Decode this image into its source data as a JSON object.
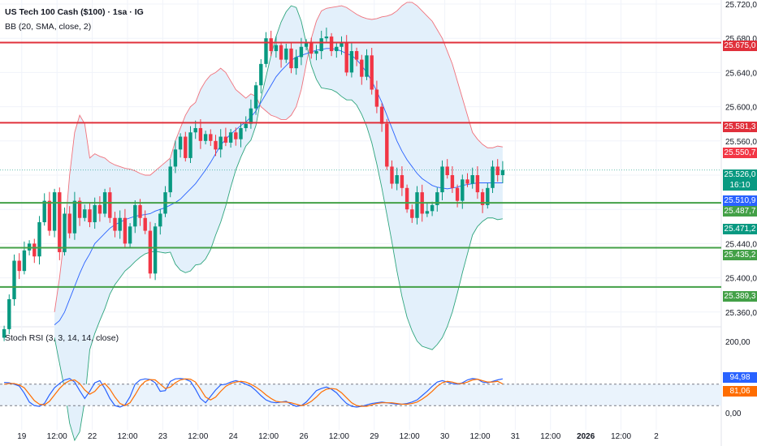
{
  "legend": {
    "title": "US Tech 100 Cash ($100) · 1sa · IG",
    "indicator": "BB (20, SMA, close, 2)",
    "oscillator": "Stoch RSI (3, 3, 14, 14, close)"
  },
  "colors": {
    "up": "#089981",
    "down": "#f23645",
    "resistance": "#e0303b",
    "support": "#43a047",
    "bb_upper": "#f0727c",
    "bb_lower": "#2fa57e",
    "bb_basis": "#2962ff",
    "bb_fill": "#e3f0fb",
    "stoch_k": "#2962ff",
    "stoch_d": "#ff6d00",
    "grid": "#f0f3fa"
  },
  "chart_data": [
    {
      "type": "candlestick",
      "title": "US Tech 100 Cash ($100) · 1sa · IG",
      "yticks": [
        "25.720,0",
        "25.680,0",
        "25.640,0",
        "25.600,0",
        "25.560,0",
        "25.520,0",
        "25.480,0",
        "25.440,0",
        "25.400,0",
        "25.360,0"
      ],
      "ytick_values": [
        25720,
        25680,
        25640,
        25600,
        25560,
        25520,
        25480,
        25440,
        25400,
        25360
      ],
      "ylim": [
        25360,
        25720
      ],
      "xticks": [
        "19",
        "12:00",
        "22",
        "12:00",
        "23",
        "12:00",
        "24",
        "12:00",
        "26",
        "12:00",
        "29",
        "12:00",
        "30",
        "12:00",
        "31",
        "12:00",
        "2026",
        "12:00",
        "2"
      ],
      "xtick_bars": [
        4,
        11,
        18,
        25,
        32,
        39,
        46,
        53,
        60,
        67,
        74,
        81,
        88,
        95,
        102,
        109,
        116,
        123,
        130
      ],
      "horizontal_levels": [
        {
          "label": "25.675,0",
          "value": 25675.0,
          "color": "#e0303b",
          "line": true
        },
        {
          "label": "25.581,3",
          "value": 25581.3,
          "color": "#e0303b",
          "line": true
        },
        {
          "label": "25.550,7",
          "value": 25550.7,
          "color": "#f23645",
          "line": false
        },
        {
          "label": "25.526,0",
          "value": 25526.0,
          "color": "#089981",
          "line": false,
          "sub": "16:10"
        },
        {
          "label": "25.510,9",
          "value": 25510.9,
          "color": "#2962ff",
          "line": false
        },
        {
          "label": "25.487,7",
          "value": 25487.7,
          "color": "#43a047",
          "line": true
        },
        {
          "label": "25.471,2",
          "value": 25471.2,
          "color": "#089981",
          "line": false
        },
        {
          "label": "25.435,2",
          "value": 25435.2,
          "color": "#43a047",
          "line": true
        },
        {
          "label": "25.389,3",
          "value": 25389.3,
          "color": "#43a047",
          "line": true
        }
      ],
      "closes": [
        25340,
        25375,
        25420,
        25408,
        25432,
        25440,
        25425,
        25465,
        25490,
        25455,
        25500,
        25430,
        25475,
        25452,
        25490,
        25470,
        25480,
        25465,
        25485,
        25475,
        25500,
        25470,
        25455,
        25470,
        25440,
        25460,
        25485,
        25470,
        25455,
        25405,
        25460,
        25475,
        25500,
        25530,
        25550,
        25565,
        25540,
        25570,
        25575,
        25560,
        25568,
        25560,
        25550,
        25565,
        25558,
        25570,
        25562,
        25575,
        25580,
        25598,
        25625,
        25650,
        25680,
        25665,
        25672,
        25655,
        25668,
        25645,
        25658,
        25670,
        25675,
        25662,
        25665,
        25680,
        25682,
        25665,
        25670,
        25675,
        25640,
        25665,
        25655,
        25635,
        25660,
        25620,
        25600,
        25580,
        25530,
        25510,
        25520,
        25505,
        25480,
        25470,
        25500,
        25475,
        25478,
        25485,
        25500,
        25530,
        25520,
        25505,
        25490,
        25515,
        25510,
        25520,
        25500,
        25485,
        25505,
        25530,
        25520,
        25526
      ],
      "bb_upper": [
        25360,
        25400,
        25450,
        25520,
        25570,
        25590,
        25580,
        25540,
        25545,
        25542,
        25540,
        25535,
        25532,
        25530,
        25528,
        25527,
        25525,
        25522,
        25520,
        25520,
        25525,
        25530,
        25535,
        25540,
        25560,
        25575,
        25590,
        25600,
        25605,
        25620,
        25630,
        25637,
        25640,
        25645,
        25640,
        25630,
        25620,
        25615,
        25610,
        25615,
        25612,
        25600,
        25595,
        25590,
        25588,
        25585,
        25585,
        25590,
        25600,
        25620,
        25650,
        25680,
        25700,
        25712,
        25715,
        25716,
        25717,
        25718,
        25716,
        25712,
        25708,
        25705,
        25703,
        25702,
        25703,
        25705,
        25706,
        25708,
        25712,
        25718,
        25722,
        25722,
        25718,
        25712,
        25706,
        25700,
        25690,
        25680,
        25665,
        25650,
        25630,
        25610,
        25590,
        25570,
        25562,
        25556,
        25552,
        25552,
        25554,
        25553
      ],
      "bb_basis": [
        25345,
        25350,
        25360,
        25375,
        25390,
        25405,
        25418,
        25428,
        25440,
        25446,
        25452,
        25458,
        25462,
        25465,
        25468,
        25470,
        25472,
        25473,
        25474,
        25475,
        25478,
        25480,
        25482,
        25485,
        25488,
        25492,
        25498,
        25504,
        25510,
        25518,
        25526,
        25535,
        25545,
        25555,
        25562,
        25568,
        25573,
        25578,
        25582,
        25588,
        25595,
        25605,
        25615,
        25625,
        25635,
        25642,
        25648,
        25654,
        25658,
        25660,
        25662,
        25664,
        25666,
        25667,
        25668,
        25668,
        25667,
        25665,
        25662,
        25660,
        25655,
        25648,
        25640,
        25630,
        25618,
        25605,
        25590,
        25575,
        25560,
        25548,
        25538,
        25530,
        25522,
        25516,
        25512,
        25508,
        25506,
        25505,
        25504,
        25505,
        25506,
        25508,
        25509,
        25510,
        25511,
        25511,
        25511,
        25511,
        25511,
        25511
      ],
      "bb_lower": [
        25330,
        25300,
        25270,
        25230,
        25210,
        25220,
        25256,
        25316,
        25335,
        25350,
        25364,
        25381,
        25392,
        25400,
        25408,
        25413,
        25419,
        25424,
        25428,
        25430,
        25431,
        25430,
        25429,
        25430,
        25416,
        25409,
        25406,
        25408,
        25415,
        25416,
        25422,
        25433,
        25450,
        25465,
        25484,
        25506,
        25526,
        25541,
        25554,
        25561,
        25578,
        25610,
        25635,
        25660,
        25682,
        25699,
        25711,
        25718,
        25716,
        25700,
        25674,
        25648,
        25632,
        25622,
        25621,
        25620,
        25617,
        25612,
        25608,
        25608,
        25602,
        25591,
        25577,
        25558,
        25533,
        25505,
        25474,
        25442,
        25408,
        25378,
        25354,
        25338,
        25326,
        25320,
        25318,
        25316,
        25322,
        25330,
        25343,
        25360,
        25382,
        25406,
        25428,
        25450,
        25460,
        25466,
        25470,
        25470,
        25468,
        25469
      ]
    },
    {
      "type": "line",
      "title": "Stoch RSI (3, 3, 14, 14, close)",
      "yticks": [
        "200,00",
        "0,00"
      ],
      "ytick_values": [
        200,
        0
      ],
      "ylim": [
        0,
        200
      ],
      "bands": [
        20,
        80
      ],
      "series": [
        {
          "name": "K",
          "label": "94,98",
          "color": "#2962ff",
          "values": [
            85,
            84,
            80,
            75,
            55,
            30,
            20,
            18,
            26,
            50,
            70,
            82,
            92,
            96,
            86,
            62,
            40,
            60,
            84,
            90,
            68,
            40,
            20,
            16,
            22,
            45,
            80,
            92,
            95,
            93,
            84,
            60,
            62,
            88,
            95,
            96,
            94,
            88,
            66,
            40,
            28,
            46,
            64,
            78,
            80,
            86,
            90,
            86,
            80,
            74,
            62,
            48,
            36,
            30,
            28,
            30,
            32,
            24,
            18,
            20,
            30,
            46,
            62,
            68,
            72,
            66,
            56,
            40,
            26,
            18,
            16,
            18,
            22,
            26,
            28,
            30,
            28,
            26,
            24,
            24,
            26,
            30,
            36,
            48,
            60,
            74,
            86,
            90,
            86,
            82,
            80,
            84,
            92,
            96,
            94,
            86,
            84,
            88,
            92,
            95
          ]
        },
        {
          "name": "D",
          "label": "81,06",
          "color": "#ff6d00",
          "values": [
            80,
            82,
            82,
            78,
            70,
            52,
            34,
            24,
            22,
            32,
            50,
            68,
            82,
            90,
            92,
            82,
            64,
            52,
            60,
            76,
            82,
            66,
            44,
            26,
            20,
            28,
            50,
            74,
            88,
            93,
            92,
            80,
            68,
            72,
            84,
            92,
            95,
            94,
            86,
            66,
            44,
            36,
            44,
            60,
            74,
            82,
            86,
            88,
            86,
            80,
            72,
            62,
            50,
            40,
            32,
            30,
            30,
            28,
            24,
            20,
            24,
            32,
            44,
            58,
            66,
            68,
            66,
            56,
            42,
            28,
            20,
            18,
            18,
            22,
            26,
            28,
            28,
            28,
            26,
            24,
            24,
            26,
            30,
            38,
            48,
            60,
            74,
            84,
            88,
            86,
            82,
            82,
            86,
            92,
            94,
            90,
            86,
            86,
            88,
            81
          ]
        }
      ],
      "xticks": [
        "19",
        "12:00",
        "22",
        "12:00",
        "23",
        "12:00",
        "24",
        "12:00",
        "26",
        "12:00",
        "29",
        "12:00",
        "30",
        "12:00",
        "31",
        "12:00",
        "2026",
        "12:00",
        "2"
      ]
    }
  ],
  "price_labels_right": {
    "r1": "25.675,0",
    "r2": "25.581,3",
    "r3": "25.550,7",
    "r4": "25.526,0",
    "r4sub": "16:10",
    "r5": "25.510,9",
    "r6": "25.487,7",
    "r7": "25.471,2",
    "r8": "25.435,2",
    "r9": "25.389,3",
    "k": "94,98",
    "d": "81,06"
  }
}
